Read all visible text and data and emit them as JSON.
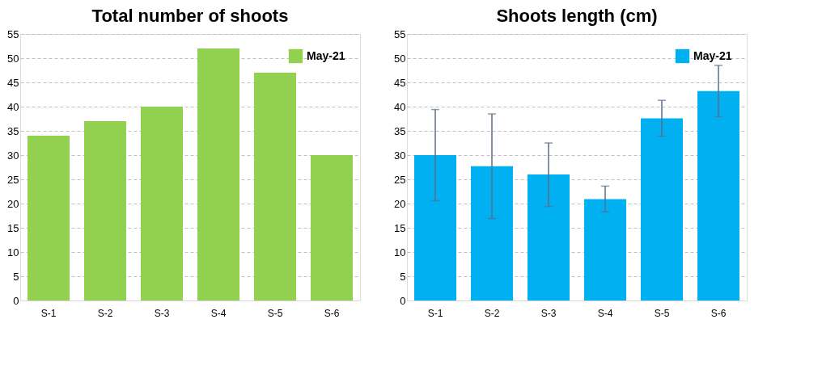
{
  "chart_data": [
    {
      "type": "bar",
      "title": "Total number of shoots",
      "categories": [
        "S-1",
        "S-2",
        "S-3",
        "S-4",
        "S-5",
        "S-6"
      ],
      "series": [
        {
          "name": "May-21",
          "color": "#92d050",
          "values": [
            34,
            37,
            40,
            52,
            47,
            30
          ]
        }
      ],
      "ylim": [
        0,
        55
      ],
      "yticks": [
        0,
        5,
        10,
        15,
        20,
        25,
        30,
        35,
        40,
        45,
        50,
        55
      ],
      "grid": "y",
      "legend": "top right"
    },
    {
      "type": "bar",
      "title": "Shoots length (cm)",
      "categories": [
        "S-1",
        "S-2",
        "S-3",
        "S-4",
        "S-5",
        "S-6"
      ],
      "series": [
        {
          "name": "May-21",
          "color": "#00b0f0",
          "values": [
            30.0,
            27.7,
            26.0,
            20.9,
            37.6,
            43.2
          ],
          "errors": [
            [
              20.6,
              39.4
            ],
            [
              16.9,
              38.5
            ],
            [
              19.4,
              32.5
            ],
            [
              18.3,
              23.6
            ],
            [
              33.9,
              41.3
            ],
            [
              37.9,
              48.5
            ]
          ]
        }
      ],
      "ylim": [
        0,
        55
      ],
      "yticks": [
        0,
        5,
        10,
        15,
        20,
        25,
        30,
        35,
        40,
        45,
        50,
        55
      ],
      "grid": "y",
      "legend": "top right"
    }
  ]
}
